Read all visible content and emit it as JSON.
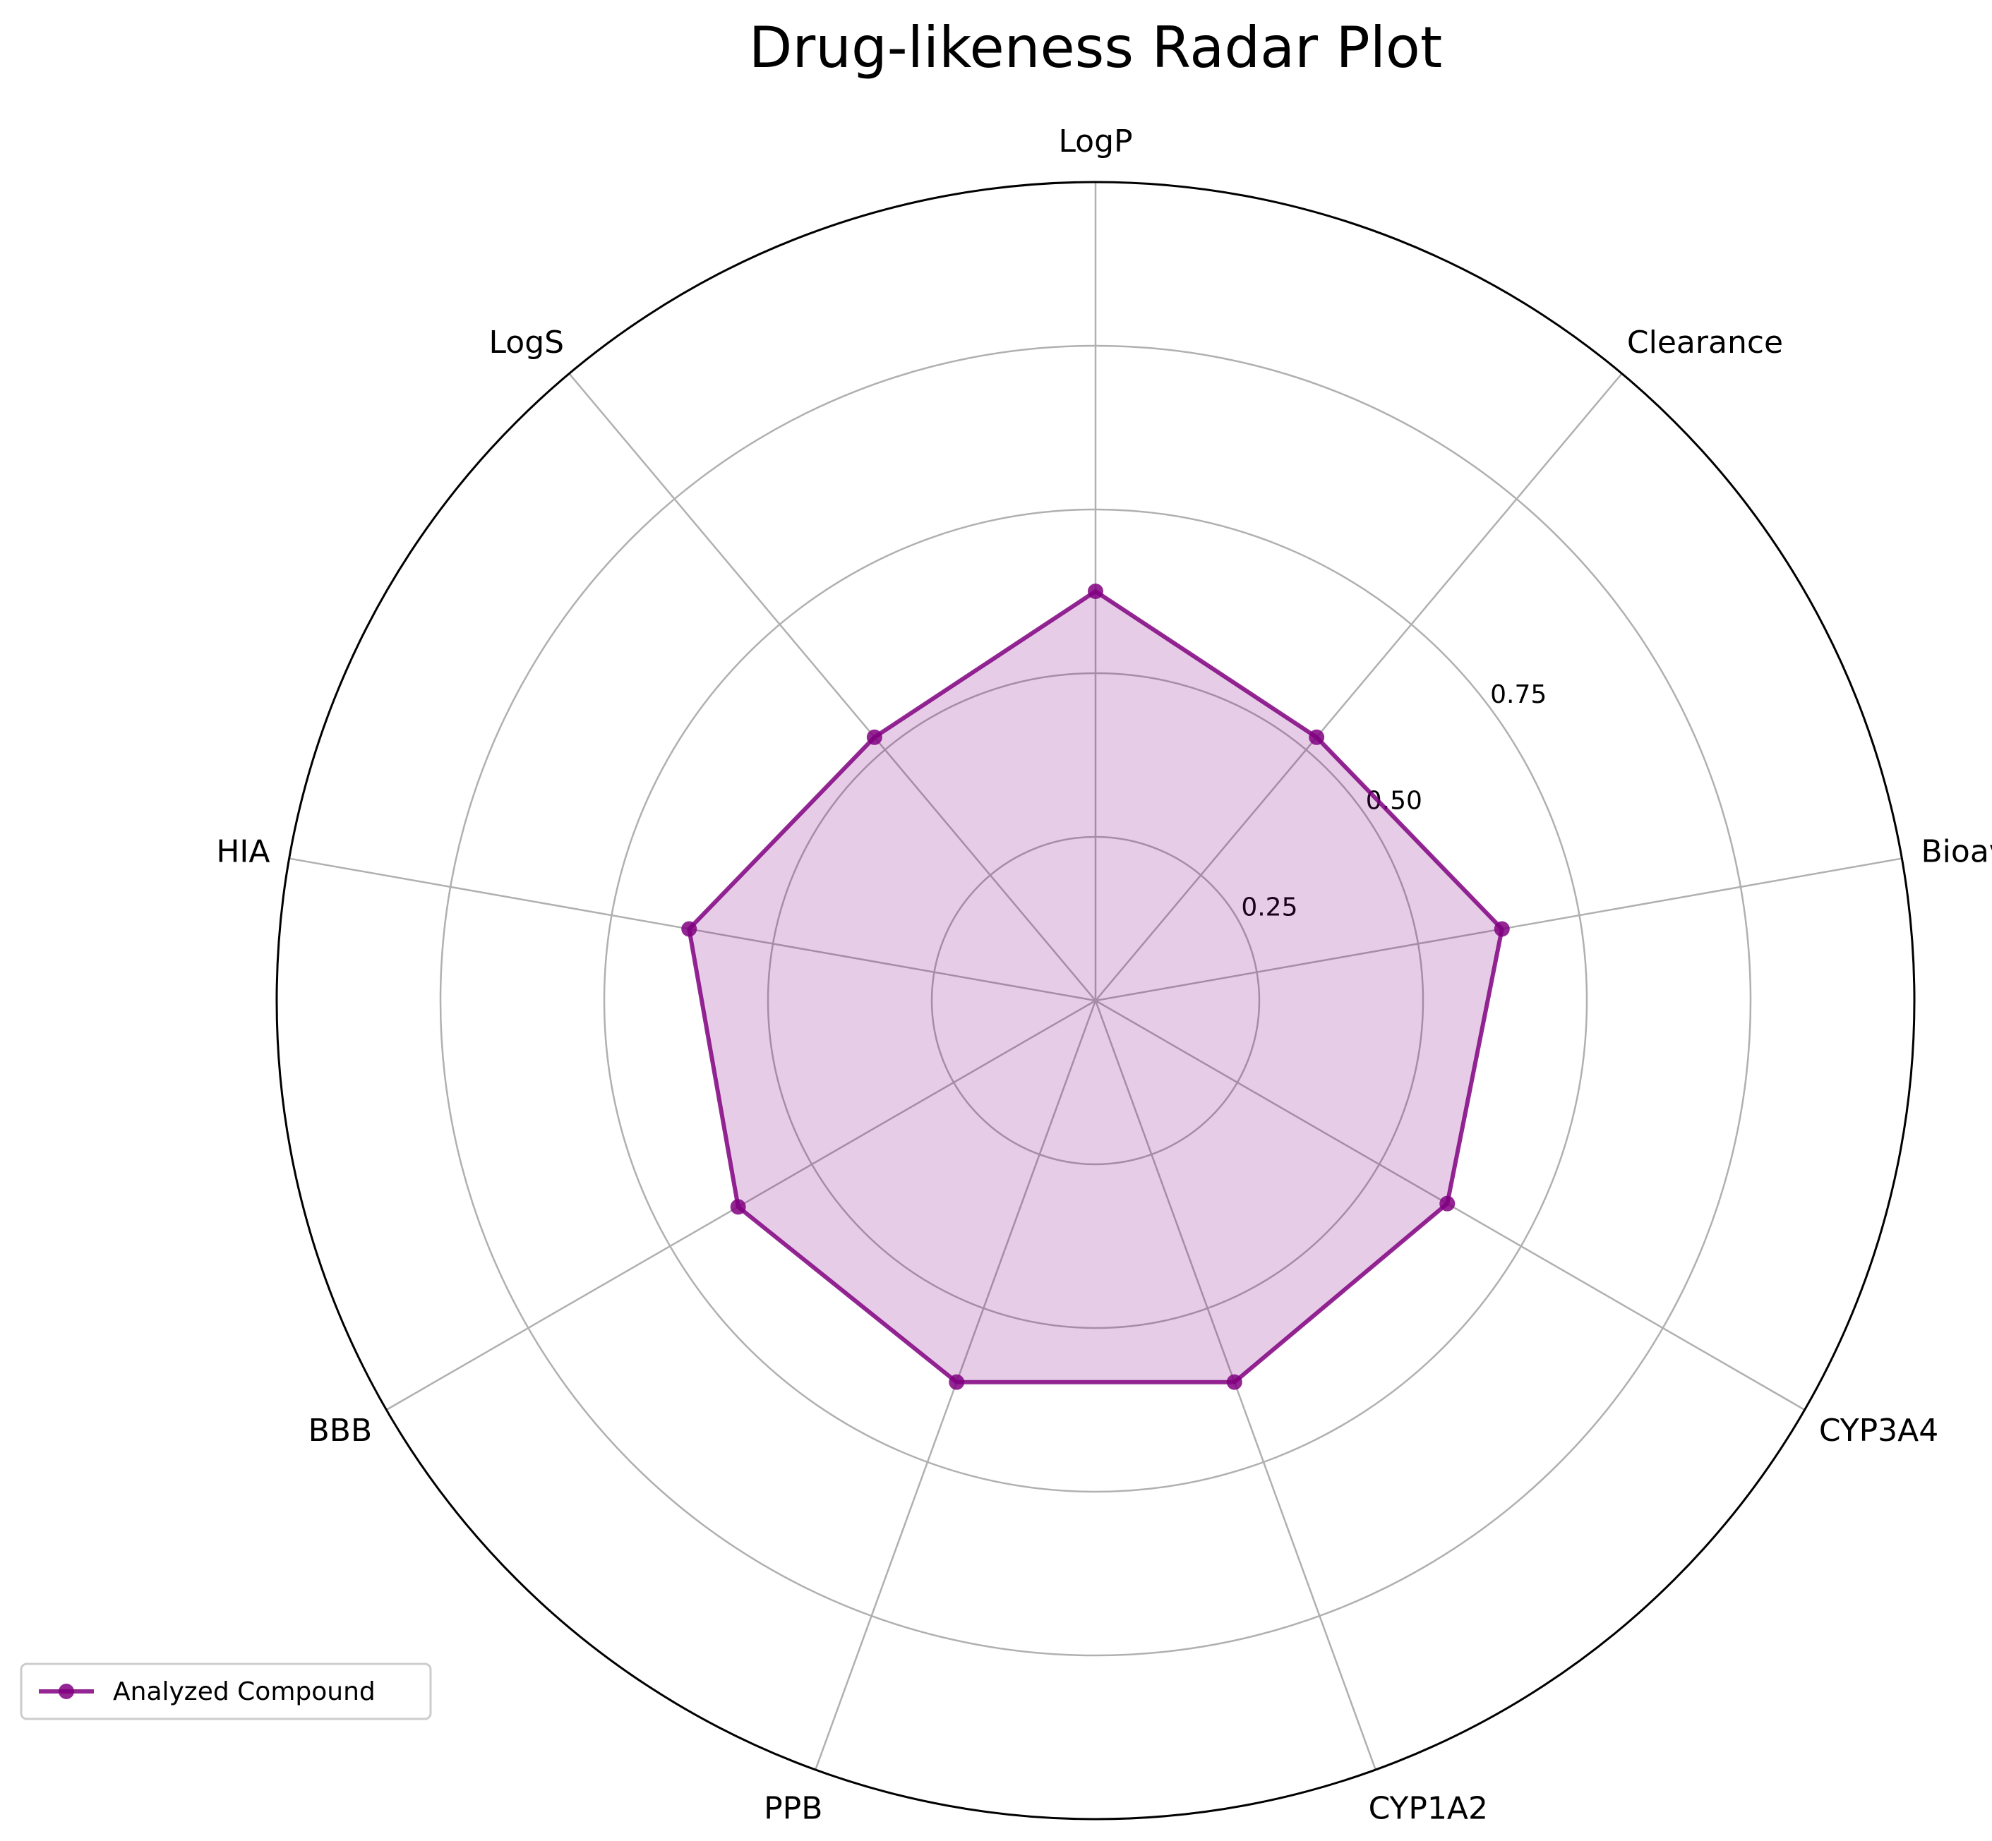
{
  "chart_data": {
    "type": "radar",
    "title": "Drug-likeness Radar Plot",
    "categories": [
      "LogP",
      "LogS",
      "HIA",
      "BBB",
      "PPB",
      "CYP1A2",
      "CYP3A4",
      "Bioavailability",
      "Clearance"
    ],
    "series": [
      {
        "name": "Analyzed Compound",
        "values": [
          0.625,
          0.525,
          0.63,
          0.63,
          0.62,
          0.62,
          0.62,
          0.63,
          0.525
        ],
        "color": "#800080"
      }
    ],
    "rticks": [
      "0.25",
      "0.50",
      "0.75"
    ],
    "rlim": [
      0,
      1.25
    ],
    "grid": true,
    "legend_position": "bottom-left"
  }
}
